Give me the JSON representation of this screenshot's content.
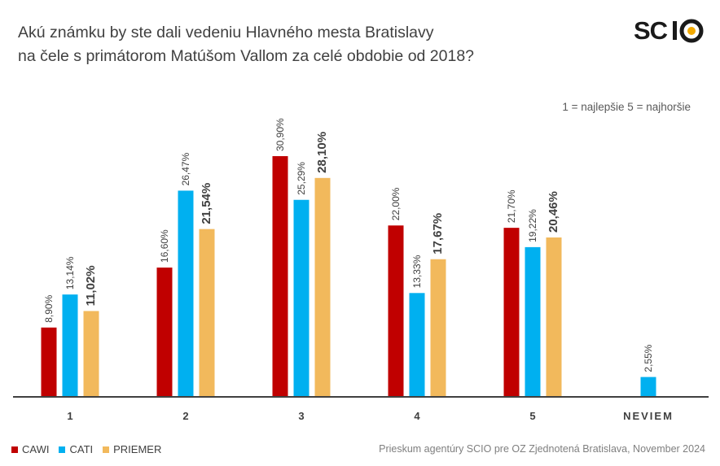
{
  "title": {
    "line1": "Akú známku by ste dali vedeniu Hlavného mesta Bratislavy",
    "line2": "na čele s primátorom Matúšom Vallom za celé obdobie od 2018?"
  },
  "logo": {
    "text_left": "SC",
    "text_right": "O",
    "brand_color": "#1a1a1a",
    "accent_color": "#f2a900"
  },
  "scale_note": "1 = najlepšie 5 = najhoršie",
  "source": "Prieskum agentúry SCIO pre OZ Zjednotená Bratislava, November 2024",
  "colors": {
    "CAWI": "#c00000",
    "CATI": "#00b0f0",
    "PRIEMER": "#f2b95c"
  },
  "chart_data": {
    "type": "bar",
    "categories": [
      "1",
      "2",
      "3",
      "4",
      "5",
      "NEVIEM"
    ],
    "series": [
      {
        "name": "CAWI",
        "values": [
          8.9,
          16.6,
          30.9,
          22.0,
          21.7,
          null
        ],
        "labels": [
          "8,90%",
          "16,60%",
          "30,90%",
          "22,00%",
          "21,70%",
          ""
        ]
      },
      {
        "name": "CATI",
        "values": [
          13.14,
          26.47,
          25.29,
          13.33,
          19.22,
          2.55
        ],
        "labels": [
          "13,14%",
          "26,47%",
          "25,29%",
          "13,33%",
          "19,22%",
          "2,55%"
        ]
      },
      {
        "name": "PRIEMER",
        "values": [
          11.02,
          21.54,
          28.1,
          17.67,
          20.46,
          null
        ],
        "labels": [
          "11,02%",
          "21,54%",
          "28,10%",
          "17,67%",
          "20,46%",
          ""
        ]
      }
    ],
    "ylim": [
      0,
      30.9
    ],
    "grid": false,
    "legend": "bottom-left"
  }
}
